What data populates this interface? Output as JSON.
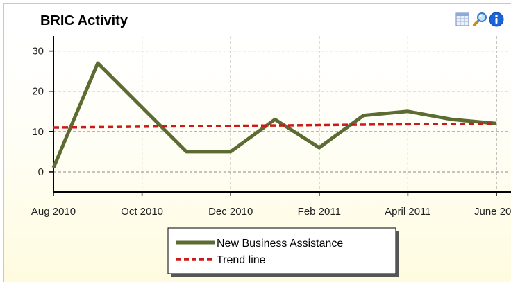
{
  "header": {
    "title": "BRIC Activity",
    "icons": [
      "table-icon",
      "magnifier-icon",
      "info-icon"
    ]
  },
  "colors": {
    "series": "#5b6b32",
    "trend": "#cc1a1a",
    "grid": "#8a8a8a"
  },
  "chart_data": {
    "type": "line",
    "title": "",
    "xlabel": "",
    "ylabel": "",
    "x": [
      "2010-08",
      "2010-09",
      "2010-10",
      "2010-11",
      "2010-12",
      "2011-01",
      "2011-02",
      "2011-03",
      "2011-04",
      "2011-05",
      "2011-06"
    ],
    "x_tick_labels": [
      "Aug 2010",
      "Oct 2010",
      "Dec 2010",
      "Feb 2011",
      "April 2011",
      "June 20"
    ],
    "y_ticks": [
      0,
      10,
      20,
      30
    ],
    "ylim": [
      -5,
      32
    ],
    "grid": true,
    "legend_position": "bottom",
    "series": [
      {
        "name": "New Business Assistance",
        "values": [
          1,
          27,
          16,
          5,
          5,
          13,
          6,
          14,
          15,
          13,
          12
        ]
      },
      {
        "name": "Trend line",
        "values": [
          11,
          11.1,
          11.2,
          11.3,
          11.4,
          11.5,
          11.6,
          11.7,
          11.8,
          11.9,
          12
        ]
      }
    ]
  }
}
